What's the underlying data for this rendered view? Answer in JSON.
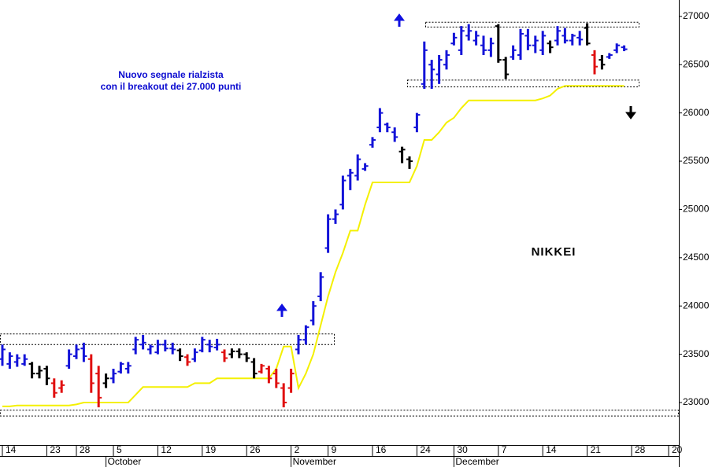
{
  "chart_data": {
    "type": "ohlc",
    "title": "NIKKEI",
    "annotations": [
      "Nuovo segnale rialzista",
      "con il breakout dei 27.000 punti"
    ],
    "categories": [
      "14",
      null,
      null,
      null,
      null,
      null,
      "23",
      null,
      null,
      null,
      "28",
      null,
      null,
      null,
      null,
      "5",
      null,
      null,
      null,
      null,
      null,
      "12",
      null,
      null,
      null,
      null,
      null,
      "19",
      null,
      null,
      null,
      null,
      null,
      "26",
      null,
      null,
      null,
      null,
      null,
      "2",
      null,
      null,
      null,
      null,
      "9",
      null,
      null,
      null,
      null,
      null,
      "16",
      null,
      null,
      null,
      null,
      null,
      "24",
      null,
      null,
      null,
      null,
      "30",
      null,
      null,
      null,
      null,
      null,
      "7",
      null,
      null,
      null,
      null,
      null,
      "14",
      null,
      null,
      null,
      null,
      null,
      "21",
      null,
      null,
      null,
      null,
      null,
      "28",
      null,
      null,
      null,
      null,
      "20",
      null
    ],
    "months": [
      "October",
      "November",
      "December"
    ],
    "ylim": [
      22560,
      27170
    ],
    "yticks": [
      23000,
      23500,
      24000,
      24500,
      25000,
      25500,
      26000,
      26500,
      27000
    ],
    "grid": false,
    "ohlc": {
      "open": [
        23450,
        23400,
        23420,
        23400,
        23400,
        23300,
        23350,
        23200,
        23150,
        23380,
        23480,
        23560,
        23450,
        23300,
        23200,
        23250,
        23320,
        23350,
        23550,
        23600,
        23550,
        23520,
        23600,
        23560,
        23540,
        23470,
        23450,
        23540,
        23600,
        23570,
        23520,
        23500,
        23530,
        23500,
        23420,
        23320,
        23350,
        23300,
        23150,
        23150,
        23550,
        23650,
        23850,
        24100,
        24600,
        24900,
        25050,
        25350,
        25350,
        25420,
        25670,
        25850,
        25880,
        25800,
        25600,
        25520,
        25850,
        26300,
        26500,
        26400,
        26500,
        26720,
        26650,
        26800,
        26750,
        26700,
        26650,
        26900,
        26550,
        26580,
        26600,
        26800,
        26700,
        26650,
        26720,
        26750,
        26800,
        26750,
        26780,
        26880,
        26600,
        26550,
        26580,
        26650,
        26680,
        null,
        null,
        null,
        null,
        null,
        null,
        null
      ],
      "high": [
        23600,
        23520,
        23500,
        23500,
        23420,
        23380,
        23380,
        23250,
        23230,
        23550,
        23600,
        23620,
        23500,
        23380,
        23300,
        23350,
        23420,
        23420,
        23680,
        23700,
        23600,
        23650,
        23650,
        23620,
        23560,
        23500,
        23560,
        23680,
        23650,
        23660,
        23550,
        23560,
        23560,
        23520,
        23460,
        23400,
        23380,
        23350,
        23200,
        23350,
        23700,
        23800,
        24050,
        24350,
        24950,
        25000,
        25350,
        25420,
        25570,
        25480,
        25750,
        26050,
        25900,
        25850,
        25650,
        25550,
        26000,
        26740,
        26550,
        26600,
        26650,
        26830,
        26900,
        26920,
        26850,
        26800,
        26780,
        26920,
        26580,
        26700,
        26870,
        26870,
        26800,
        26850,
        26750,
        26900,
        26880,
        26820,
        26850,
        26930,
        26650,
        26600,
        26620,
        26720,
        26700,
        null,
        null,
        null,
        null,
        null,
        null,
        null
      ],
      "low": [
        23380,
        23350,
        23370,
        23380,
        23250,
        23250,
        23180,
        23050,
        23100,
        23350,
        23450,
        23420,
        23100,
        22950,
        23150,
        23200,
        23300,
        23300,
        23500,
        23550,
        23500,
        23500,
        23530,
        23500,
        23430,
        23380,
        23420,
        23520,
        23520,
        23540,
        23420,
        23460,
        23460,
        23420,
        23250,
        23300,
        23200,
        23150,
        22950,
        23100,
        23500,
        23600,
        23800,
        24050,
        24550,
        24850,
        25000,
        25200,
        25300,
        25400,
        25640,
        25800,
        25800,
        25700,
        25480,
        25420,
        25800,
        26250,
        26250,
        26300,
        26450,
        26700,
        26600,
        26750,
        26700,
        26600,
        26580,
        26520,
        26350,
        26550,
        26550,
        26650,
        26620,
        26600,
        26620,
        26700,
        26720,
        26700,
        26700,
        26700,
        26400,
        26450,
        26560,
        26620,
        26640,
        null,
        null,
        null,
        null,
        null,
        null,
        null
      ],
      "close": [
        23550,
        23480,
        23460,
        23450,
        23300,
        23330,
        23250,
        23100,
        23180,
        23500,
        23550,
        23480,
        23200,
        23050,
        23250,
        23300,
        23400,
        23380,
        23650,
        23620,
        23580,
        23600,
        23560,
        23550,
        23480,
        23420,
        23520,
        23650,
        23580,
        23600,
        23460,
        23530,
        23500,
        23460,
        23300,
        23380,
        23250,
        23200,
        23000,
        23300,
        23650,
        23780,
        24000,
        24300,
        24900,
        24950,
        25300,
        25380,
        25520,
        25450,
        25720,
        26000,
        25850,
        25750,
        25620,
        25500,
        25980,
        26650,
        26450,
        26550,
        26600,
        26780,
        26850,
        26850,
        26800,
        26650,
        26720,
        26550,
        26400,
        26650,
        26820,
        26700,
        26750,
        26800,
        26680,
        26850,
        26750,
        26800,
        26760,
        26720,
        26480,
        26500,
        26600,
        26700,
        26660,
        null,
        null,
        null,
        null,
        null,
        null,
        null
      ],
      "colors": [
        "#1414d8",
        "#1414d8",
        "#1414d8",
        "#1414d8",
        "#000000",
        "#000000",
        "#000000",
        "#e01010",
        "#e01010",
        "#1414d8",
        "#1414d8",
        "#1414d8",
        "#e01010",
        "#e01010",
        "#000000",
        "#1414d8",
        "#1414d8",
        "#1414d8",
        "#1414d8",
        "#1414d8",
        "#1414d8",
        "#1414d8",
        "#1414d8",
        "#1414d8",
        "#000000",
        "#e01010",
        "#1414d8",
        "#1414d8",
        "#1414d8",
        "#1414d8",
        "#e01010",
        "#000000",
        "#000000",
        "#000000",
        "#000000",
        "#e01010",
        "#e01010",
        "#e01010",
        "#e01010",
        "#e01010",
        "#1414d8",
        "#1414d8",
        "#1414d8",
        "#1414d8",
        "#1414d8",
        "#1414d8",
        "#1414d8",
        "#1414d8",
        "#1414d8",
        "#1414d8",
        "#1414d8",
        "#1414d8",
        "#1414d8",
        "#1414d8",
        "#000000",
        "#000000",
        "#1414d8",
        "#1414d8",
        "#1414d8",
        "#1414d8",
        "#1414d8",
        "#1414d8",
        "#1414d8",
        "#1414d8",
        "#1414d8",
        "#1414d8",
        "#1414d8",
        "#000000",
        "#000000",
        "#1414d8",
        "#1414d8",
        "#1414d8",
        "#1414d8",
        "#1414d8",
        "#000000",
        "#1414d8",
        "#1414d8",
        "#1414d8",
        "#1414d8",
        "#000000",
        "#e01010",
        "#000000",
        "#1414d8",
        "#1414d8",
        "#1414d8",
        null,
        null,
        null,
        null,
        null,
        null,
        null
      ]
    },
    "line": {
      "color": "#f4f000",
      "values": [
        22960,
        22960,
        22970,
        22970,
        22970,
        22970,
        22970,
        22970,
        22970,
        22970,
        22980,
        23000,
        23000,
        23000,
        23000,
        23000,
        23000,
        23000,
        23080,
        23160,
        23160,
        23160,
        23160,
        23160,
        23160,
        23160,
        23200,
        23200,
        23200,
        23250,
        23250,
        23250,
        23250,
        23250,
        23250,
        23250,
        23250,
        23350,
        23580,
        23580,
        23150,
        23300,
        23500,
        23800,
        24100,
        24350,
        24550,
        24780,
        24780,
        25050,
        25280,
        25280,
        25280,
        25280,
        25280,
        25280,
        25450,
        25720,
        25720,
        25800,
        25900,
        25950,
        26050,
        26130,
        26130,
        26130,
        26130,
        26130,
        26130,
        26130,
        26130,
        26130,
        26130,
        26150,
        26180,
        26250,
        26280,
        26280,
        26280,
        26280,
        26280,
        26280,
        26280,
        26280,
        26280,
        null,
        null,
        null,
        null,
        null,
        null,
        null
      ]
    },
    "bands": [
      [
        23600,
        23710
      ],
      [
        26890,
        26940
      ],
      [
        26270,
        26340
      ],
      [
        22860,
        22920
      ]
    ]
  }
}
